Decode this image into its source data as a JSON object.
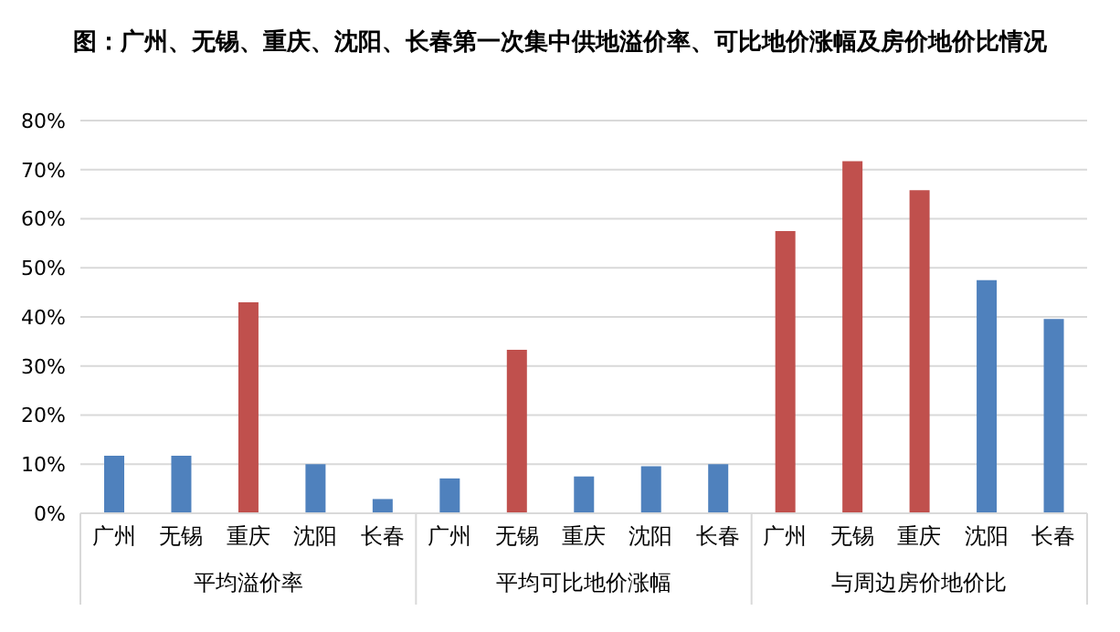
{
  "chart_data": {
    "type": "bar",
    "title": "图：广州、无锡、重庆、沈阳、长春第一次集中供地溢价率、可比地价涨幅及房价地价比情况",
    "categories": [
      "广州",
      "无锡",
      "重庆",
      "沈阳",
      "长春",
      "广州",
      "无锡",
      "重庆",
      "沈阳",
      "长春",
      "广州",
      "无锡",
      "重庆",
      "沈阳",
      "长春"
    ],
    "values": [
      11.7,
      11.7,
      43,
      10,
      2.9,
      7.1,
      33.3,
      7.5,
      9.6,
      10,
      57.5,
      71.7,
      65.8,
      47.5,
      39.6
    ],
    "colors": [
      "#4f81bd",
      "#4f81bd",
      "#c0504d",
      "#4f81bd",
      "#4f81bd",
      "#4f81bd",
      "#c0504d",
      "#4f81bd",
      "#4f81bd",
      "#4f81bd",
      "#c0504d",
      "#c0504d",
      "#c0504d",
      "#4f81bd",
      "#4f81bd"
    ],
    "annotations": [
      "平均溢价率",
      "平均可比地价涨幅",
      "与周边房价地价比"
    ],
    "ylim": [
      0,
      80
    ],
    "yticks": [
      {
        "value": 0,
        "label": "0%"
      },
      {
        "value": 10,
        "label": "10%"
      },
      {
        "value": 20,
        "label": "20%"
      },
      {
        "value": 30,
        "label": "30%"
      },
      {
        "value": 40,
        "label": "40%"
      },
      {
        "value": 50,
        "label": "50%"
      },
      {
        "value": 60,
        "label": "60%"
      },
      {
        "value": 70,
        "label": "70%"
      },
      {
        "value": 80,
        "label": "80%"
      }
    ],
    "grid": "y",
    "legend": false
  }
}
